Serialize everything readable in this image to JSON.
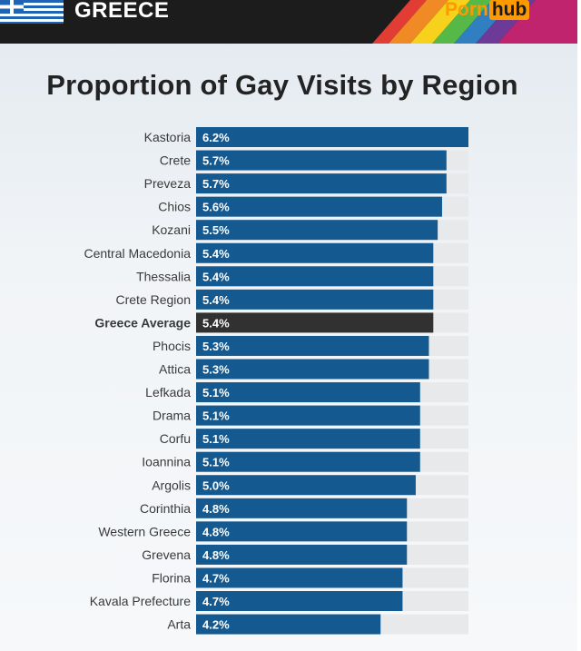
{
  "header": {
    "country": "GREECE",
    "logo_left": "Porn",
    "logo_right": "hub"
  },
  "colors": {
    "bar": "#14598f",
    "highlight_bar": "#313131",
    "track": "#e8e9ea",
    "logo_accent": "#ff9900",
    "header_bg": "#1c1c1c"
  },
  "chart_data": {
    "type": "bar",
    "orientation": "horizontal",
    "title": "Proportion of Gay Visits by Region",
    "value_suffix": "%",
    "xlim": [
      0,
      6.2
    ],
    "highlight": "Greece Average",
    "categories": [
      "Kastoria",
      "Crete",
      "Preveza",
      "Chios",
      "Kozani",
      "Central Macedonia",
      "Thessalia",
      "Crete Region",
      "Greece Average",
      "Phocis",
      "Attica",
      "Lefkada",
      "Drama",
      "Corfu",
      "Ioannina",
      "Argolis",
      "Corinthia",
      "Western Greece",
      "Grevena",
      "Florina",
      "Kavala Prefecture",
      "Arta"
    ],
    "values": [
      6.2,
      5.7,
      5.7,
      5.6,
      5.5,
      5.4,
      5.4,
      5.4,
      5.4,
      5.3,
      5.3,
      5.1,
      5.1,
      5.1,
      5.1,
      5.0,
      4.8,
      4.8,
      4.8,
      4.7,
      4.7,
      4.2
    ]
  }
}
